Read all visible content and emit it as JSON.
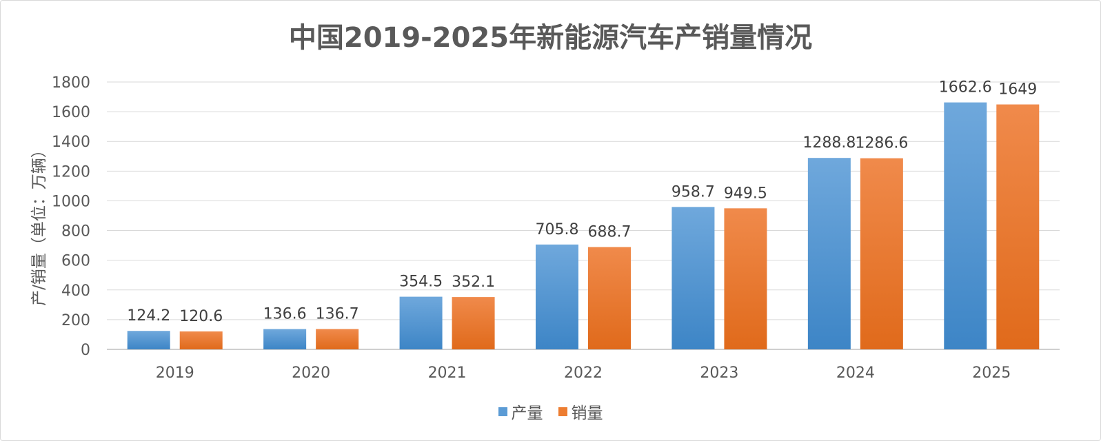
{
  "chart_data": {
    "type": "bar",
    "title": "中国2019-2025年新能源汽车产销量情况",
    "xlabel": "",
    "ylabel": "产/销量（单位：万辆）",
    "categories": [
      "2019",
      "2020",
      "2021",
      "2022",
      "2023",
      "2024",
      "2025"
    ],
    "series": [
      {
        "name": "产量",
        "values": [
          124.2,
          136.6,
          354.5,
          705.8,
          958.7,
          1288.8,
          1662.6
        ],
        "color": "#5b9bd5"
      },
      {
        "name": "销量",
        "values": [
          120.6,
          136.7,
          352.1,
          688.7,
          949.5,
          1286.6,
          1649
        ],
        "color": "#ed7d31"
      }
    ],
    "ylim": [
      0,
      1800
    ],
    "yticks": [
      0,
      200,
      400,
      600,
      800,
      1000,
      1200,
      1400,
      1600,
      1800
    ],
    "grid": true,
    "legend_position": "bottom"
  }
}
